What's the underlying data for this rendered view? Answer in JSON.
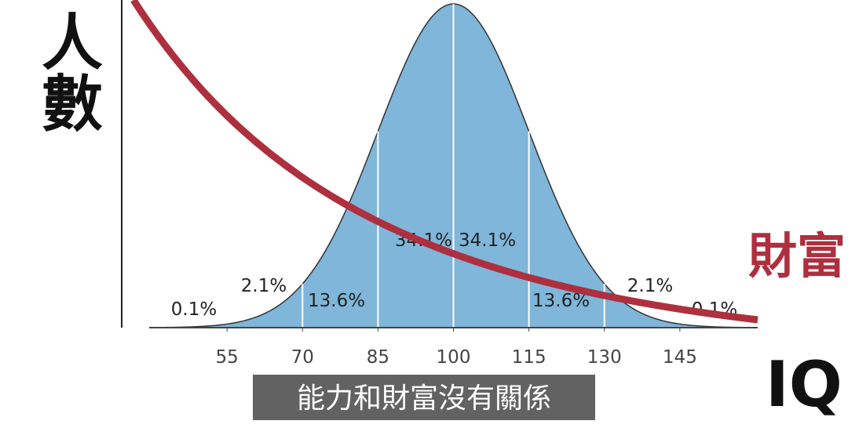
{
  "chart_data": {
    "type": "normal",
    "y_label": "人數",
    "x_label": "IQ",
    "wealth_label": "財富",
    "caption": "能力和財富沒有關係",
    "xlim": [
      40,
      160
    ],
    "xticks": [
      55,
      70,
      85,
      100,
      115,
      130,
      145
    ],
    "values": [
      0.1,
      2.1,
      13.6,
      34.1,
      34.1,
      13.6,
      2.1,
      0.1
    ],
    "value_labels": [
      "0.1%",
      "2.1%",
      "13.6%",
      "34.1%",
      "34.1%",
      "13.6%",
      "2.1%",
      "0.1%"
    ],
    "color": "#7fb6d9"
  }
}
